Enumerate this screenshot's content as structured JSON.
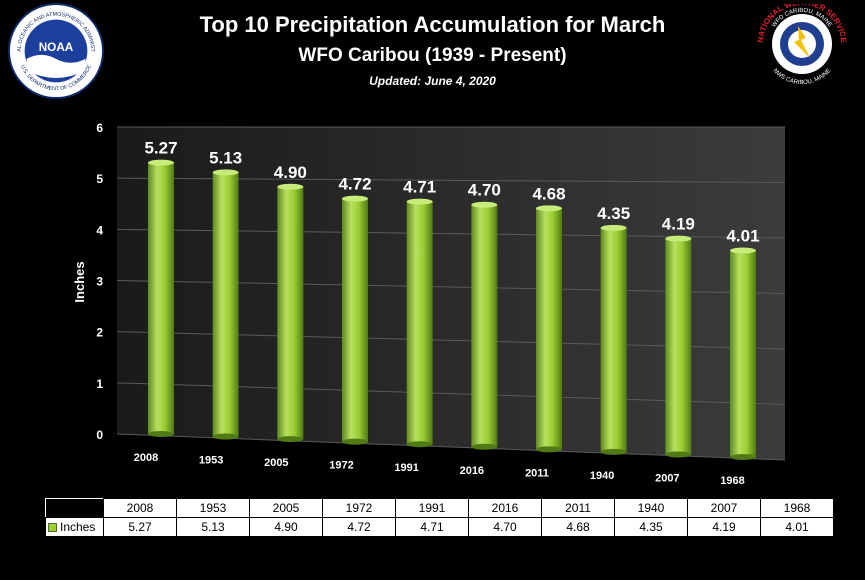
{
  "header": {
    "title": "Top 10 Precipitation Accumulation for March",
    "subtitle": "WFO Caribou (1939 - Present)",
    "updated": "Updated: June 4, 2020"
  },
  "logos": {
    "noaa_text": "NOAA",
    "noaa_ring_top": "NATIONAL OCEANIC AND ATMOSPHERIC ADMINISTRATION",
    "noaa_ring_bottom": "U.S. DEPARTMENT OF COMMERCE",
    "nws_ring_top": "WFO CARIBOU, MAINE",
    "nws_ring_mid": "NATIONAL WEATHER SERVICE",
    "nws_ring_bottom": "NWS CARIBOU, MAINE"
  },
  "chart_data": {
    "type": "bar",
    "categories": [
      "2008",
      "1953",
      "2005",
      "1972",
      "1991",
      "2016",
      "2011",
      "1940",
      "2007",
      "1968"
    ],
    "series": [
      {
        "name": "Inches",
        "values": [
          5.27,
          5.13,
          4.9,
          4.72,
          4.71,
          4.7,
          4.68,
          4.35,
          4.19,
          4.01
        ]
      }
    ],
    "data_labels": [
      "5.27",
      "5.13",
      "4.90",
      "4.72",
      "4.71",
      "4.70",
      "4.68",
      "4.35",
      "4.19",
      "4.01"
    ],
    "ylabel": "Inches",
    "ylim": [
      0,
      6
    ],
    "yticks": [
      "0",
      "1",
      "2",
      "3",
      "4",
      "5",
      "6"
    ],
    "grid": true,
    "bar_color": "#9acd32"
  },
  "table": {
    "series_label": "Inches",
    "values": [
      "5.27",
      "5.13",
      "4.90",
      "4.72",
      "4.71",
      "4.70",
      "4.68",
      "4.35",
      "4.19",
      "4.01"
    ]
  }
}
